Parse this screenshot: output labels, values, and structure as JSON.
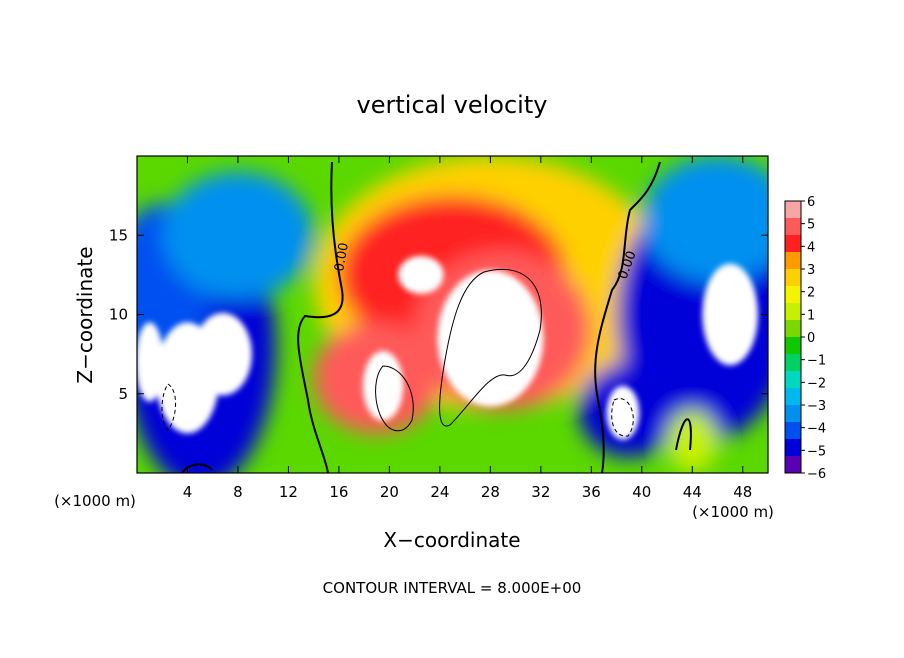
{
  "chart_data": {
    "type": "heatmap",
    "title": "vertical velocity",
    "xlabel": "X−coordinate",
    "ylabel": "Z−coordinate",
    "x_unit_left": "(×1000 m)",
    "x_unit_right": "(×1000 m)",
    "footer": "CONTOUR INTERVAL = 8.000E+00",
    "xlim": [
      0,
      50
    ],
    "ylim": [
      0,
      20
    ],
    "x_ticks": [
      "4",
      "8",
      "12",
      "16",
      "20",
      "24",
      "28",
      "32",
      "36",
      "40",
      "44",
      "48"
    ],
    "x_tick_values": [
      4,
      8,
      12,
      16,
      20,
      24,
      28,
      32,
      36,
      40,
      44,
      48
    ],
    "y_ticks": [
      "5",
      "10",
      "15"
    ],
    "y_tick_values": [
      5,
      10,
      15
    ],
    "colorbar": {
      "min": -6,
      "max": 6,
      "labels": [
        "6",
        "5",
        "4",
        "3",
        "2",
        "1",
        "0",
        "−1",
        "−2",
        "−3",
        "−4",
        "−5",
        "−6"
      ],
      "label_values": [
        6,
        5,
        4,
        3,
        2,
        1,
        0,
        -1,
        -2,
        -3,
        -4,
        -5,
        -6
      ],
      "colors": [
        "#f7a5a5",
        "#ff5a5a",
        "#ff2020",
        "#ff9a00",
        "#ffd000",
        "#f4f400",
        "#c6f000",
        "#7ad800",
        "#10c800",
        "#00d060",
        "#00d8c0",
        "#00b8f0",
        "#0090f0",
        "#0050f0",
        "#0000d8",
        "#5a00b4"
      ]
    },
    "zero_contour_labels": [
      "0.00",
      "0.00"
    ],
    "blobs": [
      {
        "x": 28,
        "y": 12,
        "rx": 14,
        "ry": 8,
        "v": 3
      },
      {
        "x": 25,
        "y": 12.5,
        "rx": 9,
        "ry": 5,
        "v": 4
      },
      {
        "x": 19,
        "y": 6,
        "rx": 5,
        "ry": 3.5,
        "v": 5
      },
      {
        "x": 29,
        "y": 9,
        "rx": 7,
        "ry": 5,
        "v": 5
      },
      {
        "x": 5,
        "y": 8,
        "rx": 6,
        "ry": 9,
        "v": -5
      },
      {
        "x": 2,
        "y": 12,
        "rx": 4,
        "ry": 5,
        "v": -4
      },
      {
        "x": 45,
        "y": 10,
        "rx": 7,
        "ry": 8,
        "v": -5
      },
      {
        "x": 39,
        "y": 4,
        "rx": 4,
        "ry": 3,
        "v": -5
      },
      {
        "x": 8,
        "y": 15,
        "rx": 6,
        "ry": 4,
        "v": -3
      },
      {
        "x": 46,
        "y": 16,
        "rx": 6,
        "ry": 4,
        "v": -3
      },
      {
        "x": 44,
        "y": 2,
        "rx": 2,
        "ry": 2,
        "v": 1
      }
    ],
    "saturated_regions": [
      {
        "x": 28,
        "y": 8.5,
        "rx": 4.2,
        "ry": 4.3,
        "v": 6
      },
      {
        "x": 19.5,
        "y": 5.5,
        "rx": 1.6,
        "ry": 2.2,
        "v": 6
      },
      {
        "x": 22.5,
        "y": 12.5,
        "rx": 1.8,
        "ry": 1.2,
        "v": 6
      },
      {
        "x": 4,
        "y": 6,
        "rx": 2.5,
        "ry": 3.5,
        "v": -6
      },
      {
        "x": 6.8,
        "y": 7.5,
        "rx": 2.3,
        "ry": 2.6,
        "v": -6
      },
      {
        "x": 1,
        "y": 7,
        "rx": 1.1,
        "ry": 2.5,
        "v": -6
      },
      {
        "x": 47,
        "y": 10,
        "rx": 2.2,
        "ry": 3.2,
        "v": -6
      },
      {
        "x": 38.5,
        "y": 3.8,
        "rx": 1.3,
        "ry": 1.7,
        "v": -6
      }
    ]
  }
}
